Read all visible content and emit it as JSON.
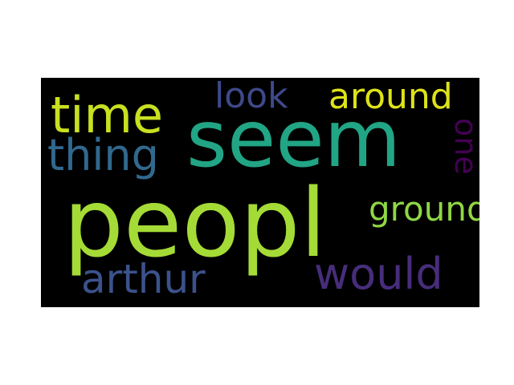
{
  "words": [
    {
      "text": "seem",
      "color": "#21a585"
    },
    {
      "text": "peopl",
      "color": "#a5db36"
    },
    {
      "text": "time",
      "color": "#c8e020"
    },
    {
      "text": "look",
      "color": "#3e4989"
    },
    {
      "text": "around",
      "color": "#dde318"
    },
    {
      "text": "thing",
      "color": "#31688e"
    },
    {
      "text": "one",
      "color": "#440154"
    },
    {
      "text": "ground",
      "color": "#8fd744"
    },
    {
      "text": "arthur",
      "color": "#3b528b"
    },
    {
      "text": "would",
      "color": "#472d7b"
    }
  ]
}
